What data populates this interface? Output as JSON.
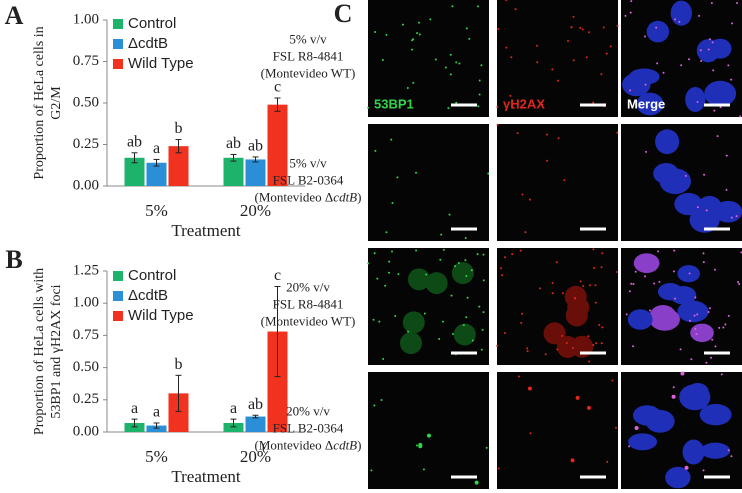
{
  "chart_data": [
    {
      "type": "bar",
      "panel": "A",
      "ylabel": [
        "Proportion of  HeLa cells in",
        "G2/M"
      ],
      "xlabel": "Treatment",
      "categories": [
        "5%",
        "20%"
      ],
      "series": [
        {
          "name": "Control",
          "color": "#1db36b",
          "values": [
            0.17,
            0.17
          ],
          "errors": [
            0.03,
            0.02
          ],
          "letters": [
            "ab",
            "ab"
          ]
        },
        {
          "name": "ΔcdtB",
          "color": "#2a8fd6",
          "values": [
            0.14,
            0.16
          ],
          "errors": [
            0.02,
            0.015
          ],
          "letters": [
            "a",
            "ab"
          ]
        },
        {
          "name": "Wild Type",
          "color": "#f0321e",
          "values": [
            0.24,
            0.49
          ],
          "errors": [
            0.04,
            0.04
          ],
          "letters": [
            "b",
            "c"
          ]
        }
      ],
      "ylim": [
        0,
        1
      ],
      "yticks": [
        {
          "value": 0,
          "label": "0.00"
        },
        {
          "value": 0.25,
          "label": "0.25"
        },
        {
          "value": 0.5,
          "label": "0.50"
        },
        {
          "value": 0.75,
          "label": "0.75"
        },
        {
          "value": 1,
          "label": "1.00"
        }
      ],
      "legend": "top-left"
    },
    {
      "type": "bar",
      "panel": "B",
      "ylabel": [
        "Proportion of HeLa  cells with",
        "53BP1 and γH2AX foci"
      ],
      "xlabel": "Treatment",
      "categories": [
        "5%",
        "20%"
      ],
      "series": [
        {
          "name": "Control",
          "color": "#1db36b",
          "values": [
            0.07,
            0.07
          ],
          "errors": [
            0.03,
            0.03
          ],
          "letters": [
            "a",
            "a"
          ]
        },
        {
          "name": "ΔcdtB",
          "color": "#2a8fd6",
          "values": [
            0.05,
            0.12
          ],
          "errors": [
            0.02,
            0.01
          ],
          "letters": [
            "a",
            "ab"
          ]
        },
        {
          "name": "Wild Type",
          "color": "#f0321e",
          "values": [
            0.3,
            0.78
          ],
          "errors": [
            0.14,
            0.35
          ],
          "letters": [
            "b",
            "c"
          ]
        }
      ],
      "ylim": [
        0,
        1.25
      ],
      "yticks": [
        {
          "value": 0,
          "label": "0.00"
        },
        {
          "value": 0.25,
          "label": "0.25"
        },
        {
          "value": 0.5,
          "label": "0.50"
        },
        {
          "value": 0.75,
          "label": "0.75"
        },
        {
          "value": 1,
          "label": "1.00"
        },
        {
          "value": 1.25,
          "label": "1.25"
        }
      ],
      "legend": "top-left"
    }
  ],
  "panel_c": {
    "panel": "C",
    "columns": [
      "53BP1",
      "γH2AX",
      "Merge"
    ],
    "rows": [
      {
        "lines": [
          [
            "5% v/v"
          ],
          [
            "FSL R8-4841"
          ],
          [
            "(Montevideo WT)"
          ]
        ]
      },
      {
        "lines": [
          [
            "5% v/v"
          ],
          [
            "FSL B2-0364"
          ],
          [
            "(Montevideo Δ",
            "cdtB",
            ")"
          ]
        ]
      },
      {
        "lines": [
          [
            "20% v/v"
          ],
          [
            "FSL R8-4841"
          ],
          [
            "(Montevideo WT)"
          ]
        ]
      },
      {
        "lines": [
          [
            "20% v/v"
          ],
          [
            "FSL B2-0364"
          ],
          [
            "(Montevideo Δ",
            "cdtB",
            ")"
          ]
        ]
      }
    ],
    "stray_mark": "("
  }
}
